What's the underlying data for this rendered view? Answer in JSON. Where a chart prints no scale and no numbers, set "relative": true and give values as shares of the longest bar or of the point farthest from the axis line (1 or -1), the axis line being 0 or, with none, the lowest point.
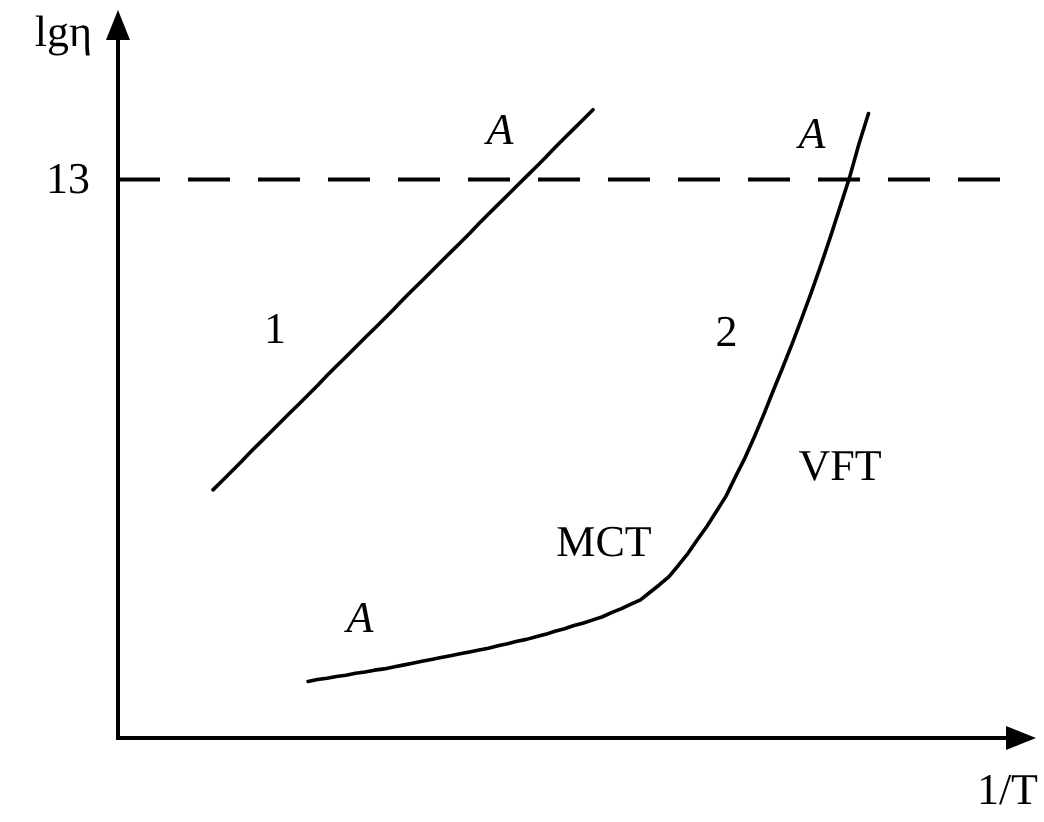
{
  "chart_data": {
    "type": "line",
    "relative": true,
    "xlabel": "1/T",
    "ylabel": "lgη",
    "categories": [
      null,
      null,
      null,
      null,
      null,
      null,
      null,
      null,
      null,
      null,
      null,
      null,
      null,
      null,
      null,
      null,
      null,
      null,
      null,
      null,
      null,
      null,
      null,
      null,
      null,
      null,
      null,
      null,
      null,
      null,
      null,
      null,
      null,
      null,
      null,
      null,
      null,
      null,
      null,
      null,
      null,
      null,
      null,
      null,
      null,
      null,
      null,
      null,
      null,
      null,
      null,
      null,
      null,
      null,
      null,
      null,
      null,
      null,
      null,
      null,
      null,
      null,
      null,
      null,
      null,
      null,
      null,
      null,
      null,
      null,
      null,
      null,
      null,
      null,
      null,
      null,
      null,
      null,
      null,
      null,
      null,
      null,
      null,
      null,
      null,
      null,
      null,
      null,
      null,
      null,
      null,
      null,
      null,
      null,
      null
    ],
    "series": [
      {
        "name": "1",
        "color": "#000000",
        "values": [
          null,
          null,
          null,
          null,
          null,
          null,
          null,
          null,
          null,
          null,
          0.395,
          0.41,
          0.425,
          0.44,
          0.456,
          0.471,
          0.486,
          0.501,
          0.516,
          0.531,
          0.546,
          0.561,
          0.577,
          0.592,
          0.607,
          0.622,
          0.637,
          0.652,
          0.667,
          0.682,
          0.698,
          0.713,
          0.728,
          0.743,
          0.758,
          0.773,
          0.788,
          0.803,
          0.819,
          0.834,
          0.849,
          0.864,
          0.879,
          0.894,
          0.909,
          0.924,
          0.94,
          0.955,
          0.97,
          0.985,
          1,
          null,
          null,
          null,
          null,
          null,
          null,
          null,
          null,
          null,
          null,
          null,
          null,
          null,
          null,
          null,
          null,
          null,
          null,
          null,
          null,
          null,
          null,
          null,
          null,
          null,
          null,
          null,
          null,
          null,
          null,
          null,
          null,
          null,
          null,
          null,
          null,
          null,
          null,
          null,
          null,
          null,
          null,
          null,
          null
        ]
      },
      {
        "name": "2",
        "color": "#000000",
        "values": [
          null,
          null,
          null,
          null,
          null,
          null,
          null,
          null,
          null,
          null,
          null,
          null,
          null,
          null,
          null,
          null,
          null,
          null,
          null,
          null,
          0.09,
          0.093,
          0.095,
          0.098,
          0.1,
          0.103,
          0.105,
          0.108,
          0.11,
          0.113,
          0.116,
          0.119,
          0.122,
          0.125,
          0.128,
          0.131,
          0.134,
          0.137,
          0.14,
          0.143,
          0.147,
          0.15,
          0.154,
          0.157,
          0.161,
          0.165,
          0.17,
          0.174,
          0.179,
          0.183,
          0.188,
          0.193,
          0.2,
          0.206,
          0.213,
          0.22,
          0.232,
          0.244,
          0.257,
          0.275,
          0.294,
          0.316,
          0.337,
          0.361,
          0.385,
          0.416,
          0.446,
          0.48,
          0.516,
          0.554,
          0.591,
          0.629,
          0.669,
          0.71,
          0.753,
          0.798,
          0.845,
          0.892,
          0.946,
          0.994,
          null,
          null,
          null,
          null,
          null,
          null,
          null,
          null,
          null,
          null,
          null,
          null,
          null,
          null,
          null
        ]
      }
    ],
    "ref_lines": [
      {
        "axis": "y",
        "value": 0.889,
        "line_style": "dashed"
      }
    ],
    "annotations": [
      "A",
      "A",
      "13",
      "VFT",
      "MCT",
      "A"
    ]
  }
}
